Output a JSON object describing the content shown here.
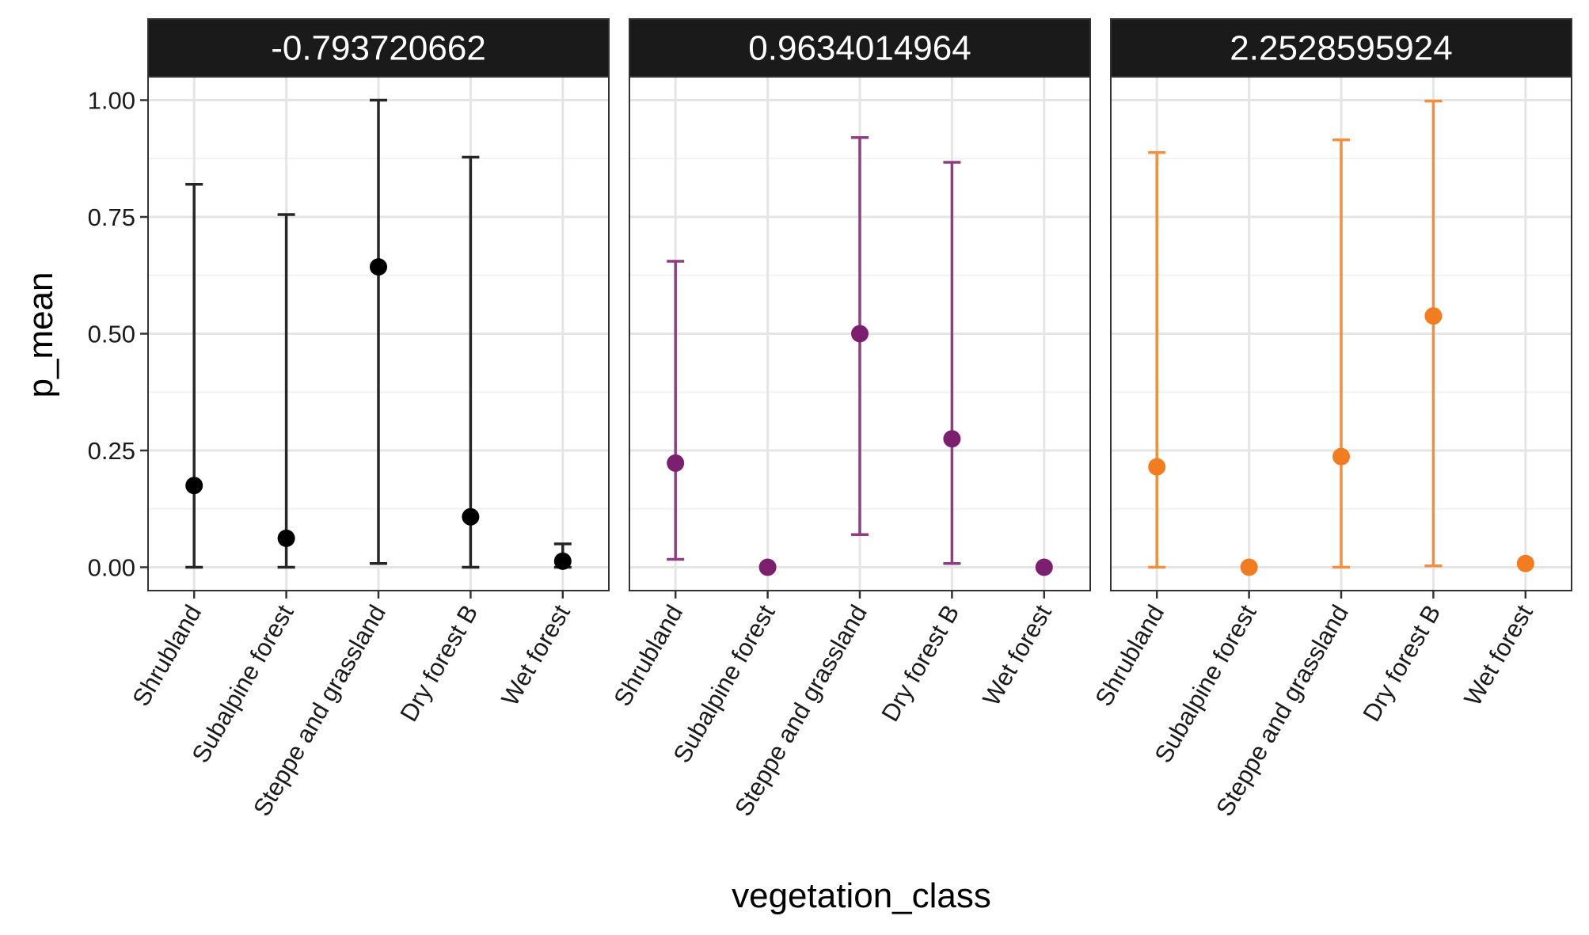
{
  "chart_data": {
    "type": "scatter",
    "subtype": "point-with-errorbars, faceted",
    "xlabel": "vegetation_class",
    "ylabel": "p_mean",
    "ylim": [
      -0.05,
      1.05
    ],
    "y_ticks": [
      0.0,
      0.25,
      0.5,
      0.75,
      1.0
    ],
    "y_tick_labels": [
      "0.00",
      "0.25",
      "0.50",
      "0.75",
      "1.00"
    ],
    "categories": [
      "Shrubland",
      "Subalpine forest",
      "Steppe and grassland",
      "Dry forest B",
      "Wet forest"
    ],
    "grid": true,
    "legend": "none",
    "panels": [
      {
        "label": "-0.793720662",
        "color": "#000000",
        "bar_color": "#262626",
        "values": [
          0.175,
          0.062,
          0.643,
          0.108,
          0.013
        ],
        "lower": [
          0.0,
          0.0,
          0.008,
          0.0,
          0.0
        ],
        "upper": [
          0.82,
          0.755,
          1.0,
          0.878,
          0.05
        ]
      },
      {
        "label": "0.9634014964",
        "color": "#7b1f6e",
        "bar_color": "#8e3f82",
        "values": [
          0.223,
          0.0,
          0.5,
          0.275,
          0.0
        ],
        "lower": [
          0.017,
          null,
          0.07,
          0.008,
          null
        ],
        "upper": [
          0.655,
          null,
          0.92,
          0.867,
          null
        ]
      },
      {
        "label": "2.2528595924",
        "color": "#f47c20",
        "bar_color": "#f18f3e",
        "values": [
          0.215,
          0.0,
          0.237,
          0.538,
          0.008
        ],
        "lower": [
          0.0,
          null,
          0.0,
          0.003,
          null
        ],
        "upper": [
          0.888,
          null,
          0.915,
          0.998,
          null
        ]
      }
    ]
  }
}
